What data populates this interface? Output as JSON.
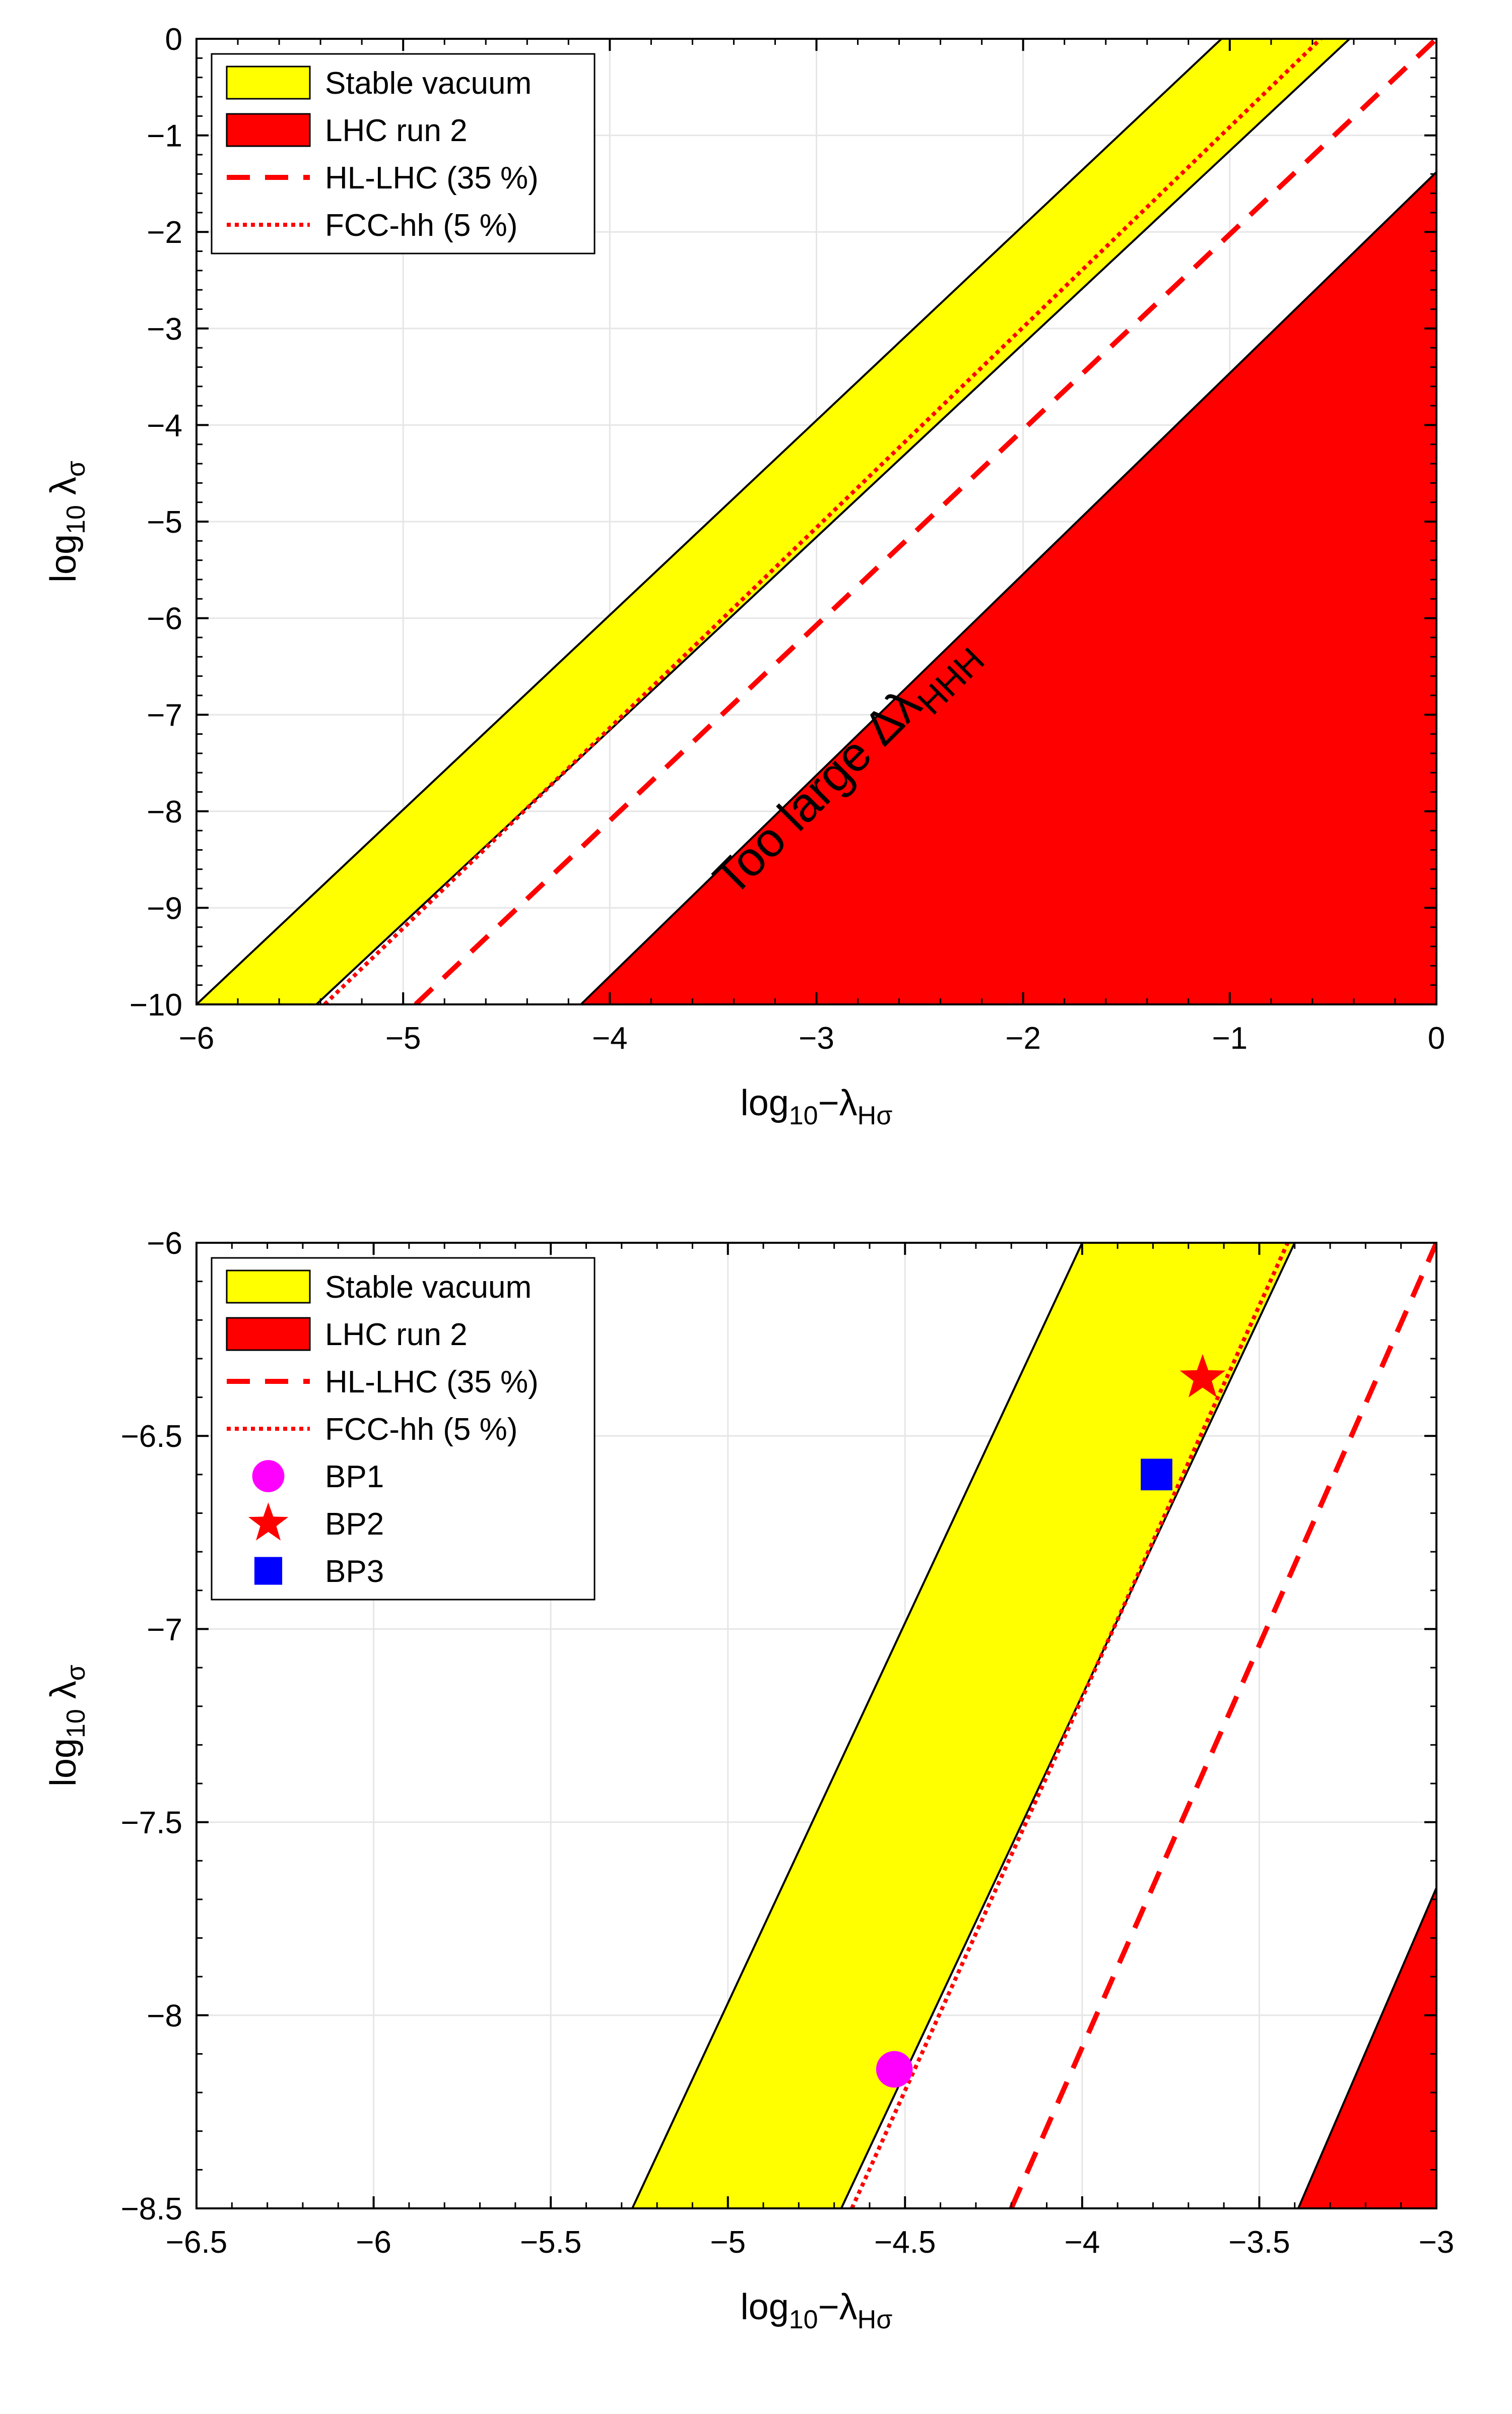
{
  "colors": {
    "stable_fill": "#ffff00",
    "lhc_fill": "#ff0000",
    "hl_line": "#ff0000",
    "fcc_line": "#ff0000",
    "bp1": "#ff00ff",
    "bp2": "#ff0000",
    "bp3": "#0000ff",
    "grid": "#e6e6e6",
    "axis": "#000000"
  },
  "chart_data": [
    {
      "type": "area",
      "panel": "top",
      "xlabel": {
        "base": "log",
        "sub": "10",
        "rest": "−λ",
        "sub2": "Hσ"
      },
      "ylabel": {
        "base": "log",
        "sub": "10",
        "rest": " λ",
        "sub2": "σ"
      },
      "xlim": [
        -6,
        0
      ],
      "ylim": [
        -10,
        0
      ],
      "xticks": [
        -6,
        -5,
        -4,
        -3,
        -2,
        -1,
        0
      ],
      "yticks": [
        -10,
        -9,
        -8,
        -7,
        -6,
        -5,
        -4,
        -3,
        -2,
        -1,
        0
      ],
      "xtick_labels": [
        "−6",
        "−5",
        "−4",
        "−3",
        "−2",
        "−1",
        "0"
      ],
      "ytick_labels": [
        "−10",
        "−9",
        "−8",
        "−7",
        "−6",
        "−5",
        "−4",
        "−3",
        "−2",
        "−1",
        "0"
      ],
      "grid": true,
      "legend_position": "top-left",
      "regions": [
        {
          "name": "Stable vacuum",
          "kind": "band",
          "x": [
            -6,
            -1.04,
            -0.42,
            -5.42
          ],
          "y": [
            -10,
            0,
            0,
            -10
          ]
        },
        {
          "name": "LHC run 2",
          "kind": "region",
          "x": [
            -4.14,
            0,
            0
          ],
          "y": [
            -10,
            -1.38,
            -10
          ]
        }
      ],
      "series": [
        {
          "name": "HL-LHC (35 %)",
          "style": "dashed",
          "x": [
            -4.94,
            0
          ],
          "y": [
            -10,
            0
          ]
        },
        {
          "name": "FCC-hh (5 %)",
          "style": "dotted",
          "x": [
            -5.38,
            -0.56
          ],
          "y": [
            -10,
            0
          ]
        }
      ],
      "legend": [
        {
          "label": "Stable vacuum",
          "kind": "patch-yellow"
        },
        {
          "label": "LHC run 2",
          "kind": "patch-red"
        },
        {
          "label": "HL-LHC (35 %)",
          "kind": "dashed"
        },
        {
          "label": "FCC-hh (5 %)",
          "kind": "dotted"
        }
      ],
      "annotation": {
        "text_main": "Too large Δλ",
        "text_sub": "HHH",
        "anchor_x": -3.4,
        "anchor_y": -8.9,
        "angle_deg": -45
      }
    },
    {
      "type": "area",
      "panel": "bottom",
      "xlabel": {
        "base": "log",
        "sub": "10",
        "rest": "−λ",
        "sub2": "Hσ"
      },
      "ylabel": {
        "base": "log",
        "sub": "10",
        "rest": " λ",
        "sub2": "σ"
      },
      "xlim": [
        -6.5,
        -3
      ],
      "ylim": [
        -8.5,
        -6
      ],
      "xticks": [
        -6.5,
        -6,
        -5.5,
        -5,
        -4.5,
        -4,
        -3.5,
        -3
      ],
      "yticks": [
        -8.5,
        -8,
        -7.5,
        -7,
        -6.5,
        -6
      ],
      "xtick_labels": [
        "−6.5",
        "−6",
        "−5.5",
        "−5",
        "−4.5",
        "−4",
        "−3.5",
        "−3"
      ],
      "ytick_labels": [
        "−8.5",
        "−8",
        "−7.5",
        "−7",
        "−6.5",
        "−6"
      ],
      "grid": true,
      "legend_position": "top-left",
      "regions": [
        {
          "name": "Stable vacuum",
          "kind": "band",
          "x": [
            -5.27,
            -4.0,
            -3.4,
            -4.68
          ],
          "y": [
            -8.5,
            -6,
            -6,
            -8.5
          ]
        },
        {
          "name": "LHC run 2",
          "kind": "region",
          "x": [
            -3.39,
            -3.0,
            -3.0
          ],
          "y": [
            -8.5,
            -7.67,
            -8.5
          ]
        }
      ],
      "series": [
        {
          "name": "HL-LHC (35 %)",
          "style": "dashed",
          "x": [
            -4.2,
            -3.0
          ],
          "y": [
            -8.5,
            -6.0
          ]
        },
        {
          "name": "FCC-hh (5 %)",
          "style": "dotted",
          "x": [
            -4.65,
            -3.42
          ],
          "y": [
            -8.5,
            -6.0
          ]
        }
      ],
      "points": [
        {
          "name": "BP1",
          "x": -4.53,
          "y": -8.14,
          "marker": "circle"
        },
        {
          "name": "BP2",
          "x": -3.66,
          "y": -6.35,
          "marker": "star"
        },
        {
          "name": "BP3",
          "x": -3.79,
          "y": -6.6,
          "marker": "square"
        }
      ],
      "legend": [
        {
          "label": "Stable vacuum",
          "kind": "patch-yellow"
        },
        {
          "label": "LHC run 2",
          "kind": "patch-red"
        },
        {
          "label": "HL-LHC (35 %)",
          "kind": "dashed"
        },
        {
          "label": "FCC-hh (5 %)",
          "kind": "dotted"
        },
        {
          "label": "BP1",
          "kind": "circle"
        },
        {
          "label": "BP2",
          "kind": "star"
        },
        {
          "label": "BP3",
          "kind": "square"
        }
      ]
    }
  ]
}
